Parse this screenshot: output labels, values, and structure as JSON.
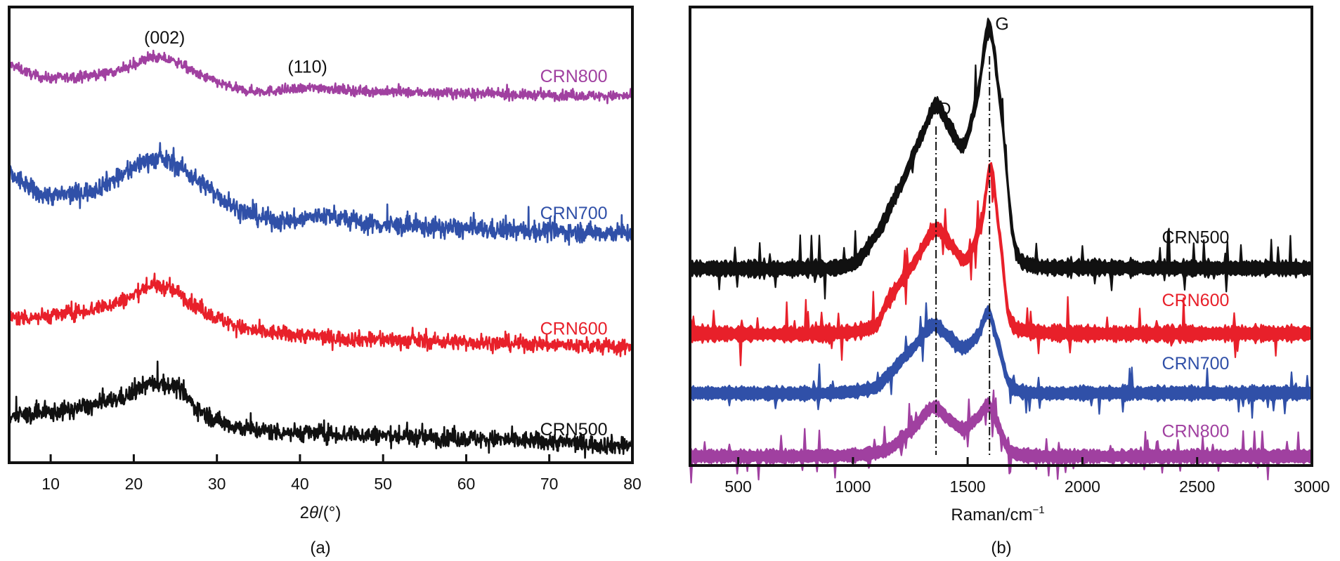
{
  "chart_data": [
    {
      "id": "xrd",
      "type": "line",
      "panel_label": "(a)",
      "title": "",
      "xlabel_prefix": "2",
      "xlabel_symbol": "θ",
      "xlabel_suffix": "/(°)",
      "ylabel": "",
      "xlim": [
        5,
        80
      ],
      "ylim": [
        0,
        100
      ],
      "y_ticks_shown": false,
      "grid": false,
      "xticks": [
        10,
        20,
        30,
        40,
        50,
        60,
        70,
        80
      ],
      "xtick_labels": [
        "10",
        "20",
        "30",
        "40",
        "50",
        "60",
        "70",
        "80"
      ],
      "annotations": [
        {
          "text": "(002)",
          "x": 23.7,
          "y": 93
        },
        {
          "text": "(110)",
          "x": 40.9,
          "y": 86.6
        }
      ],
      "series": [
        {
          "name": "CRN800",
          "color": "#a040a0",
          "noise": 1.2,
          "x": [
            5,
            9,
            14,
            19,
            22,
            25,
            28,
            33,
            38,
            42,
            47,
            55,
            65,
            80
          ],
          "y": [
            87.4,
            84.6,
            84.8,
            86.5,
            88.8,
            88.0,
            85.0,
            81.8,
            81.7,
            82.3,
            81.6,
            81.2,
            80.8,
            80.4
          ],
          "label_pos": [
            77,
            84.5
          ]
        },
        {
          "name": "CRN700",
          "color": "#3050a8",
          "noise": 2.4,
          "x": [
            5,
            9,
            14,
            18,
            22,
            25,
            28,
            33,
            38,
            43,
            48,
            55,
            65,
            80
          ],
          "y": [
            63.5,
            58.9,
            59.4,
            62.5,
            66.6,
            65.5,
            61.5,
            55.3,
            53.0,
            54.2,
            52.5,
            51.7,
            51.0,
            50.4
          ],
          "label_pos": [
            77,
            54.5
          ]
        },
        {
          "name": "CRN600",
          "color": "#e8202a",
          "noise": 1.9,
          "x": [
            5,
            10,
            15,
            19,
            22,
            25,
            28,
            31,
            34,
            40,
            45,
            55,
            65,
            80
          ],
          "y": [
            31.7,
            32.3,
            33.7,
            35.8,
            38.8,
            37.6,
            33.7,
            31.0,
            29.1,
            28.0,
            27.3,
            26.7,
            26.2,
            25.3
          ],
          "label_pos": [
            77,
            29.1
          ]
        },
        {
          "name": "CRN500",
          "color": "#111111",
          "noise": 2.2,
          "x": [
            5,
            10,
            15,
            19,
            22,
            25,
            28,
            31,
            35,
            40,
            45,
            55,
            65,
            80
          ],
          "y": [
            10.2,
            11.0,
            12.5,
            14.6,
            17.3,
            16.5,
            11.4,
            8.6,
            7.1,
            6.6,
            6.3,
            5.6,
            5.0,
            3.7
          ],
          "label_pos": [
            77,
            7.0
          ]
        }
      ]
    },
    {
      "id": "raman",
      "type": "area",
      "panel_label": "(b)",
      "title": "",
      "xlabel": "Raman/cm",
      "xlabel_sup": "−1",
      "ylabel": "",
      "xlim": [
        290,
        3000
      ],
      "ylim": [
        0,
        100
      ],
      "y_ticks_shown": false,
      "grid": false,
      "xticks": [
        500,
        1000,
        1500,
        2000,
        2500,
        3000
      ],
      "xtick_labels": [
        "500",
        "1000",
        "1500",
        "2000",
        "2500",
        "3000"
      ],
      "reference_lines": [
        {
          "name": "D",
          "x": 1362,
          "style": "dash-dot"
        },
        {
          "name": "G",
          "x": 1595,
          "style": "dash-dot"
        }
      ],
      "annotations": [
        {
          "text": "D",
          "x": 1400,
          "y": 77.5
        },
        {
          "text": "G",
          "x": 1650,
          "y": 96
        }
      ],
      "series": [
        {
          "name": "CRN500",
          "color": "#111111",
          "noise": 2.2,
          "x": [
            290,
            800,
            1000,
            1100,
            1200,
            1300,
            1362,
            1420,
            1480,
            1540,
            1593,
            1640,
            1700,
            1750,
            2000,
            3000
          ],
          "y": [
            43.0,
            43.0,
            44.0,
            50.2,
            60.2,
            72.0,
            78.6,
            74.0,
            69.8,
            80.0,
            95.4,
            80.0,
            49.5,
            44.1,
            43.2,
            43.0
          ],
          "label_pos": [
            2640,
            49.5
          ]
        },
        {
          "name": "CRN600",
          "color": "#e8202a",
          "noise": 2.0,
          "x": [
            290,
            900,
            1100,
            1150,
            1250,
            1362,
            1430,
            1490,
            1560,
            1600,
            1640,
            1680,
            1750,
            2000,
            3000
          ],
          "y": [
            28.8,
            28.8,
            30.5,
            35.7,
            43.0,
            51.5,
            48.0,
            44.9,
            53.0,
            64.8,
            50.0,
            32.6,
            29.5,
            28.8,
            28.8
          ],
          "label_pos": [
            2640,
            35.8
          ]
        },
        {
          "name": "CRN700",
          "color": "#3050a8",
          "noise": 1.6,
          "x": [
            290,
            900,
            1100,
            1150,
            1250,
            1350,
            1420,
            1480,
            1545,
            1590,
            1630,
            1680,
            1750,
            2000,
            3000
          ],
          "y": [
            15.8,
            15.8,
            17.0,
            19.6,
            25.0,
            30.6,
            28.0,
            25.7,
            28.5,
            33.4,
            27.0,
            18.1,
            16.0,
            15.8,
            15.8
          ],
          "label_pos": [
            2640,
            22.0
          ]
        },
        {
          "name": "CRN800",
          "color": "#a040a0",
          "noise": 1.6,
          "x": [
            290,
            1000,
            1150,
            1250,
            1350,
            1420,
            1480,
            1545,
            1590,
            1630,
            1680,
            1750,
            2000,
            3000
          ],
          "y": [
            2.0,
            2.2,
            3.5,
            7.5,
            12.7,
            10.0,
            8.1,
            10.5,
            13.2,
            9.0,
            3.5,
            2.2,
            2.0,
            2.0
          ],
          "label_pos": [
            2640,
            7.2
          ]
        }
      ]
    }
  ]
}
